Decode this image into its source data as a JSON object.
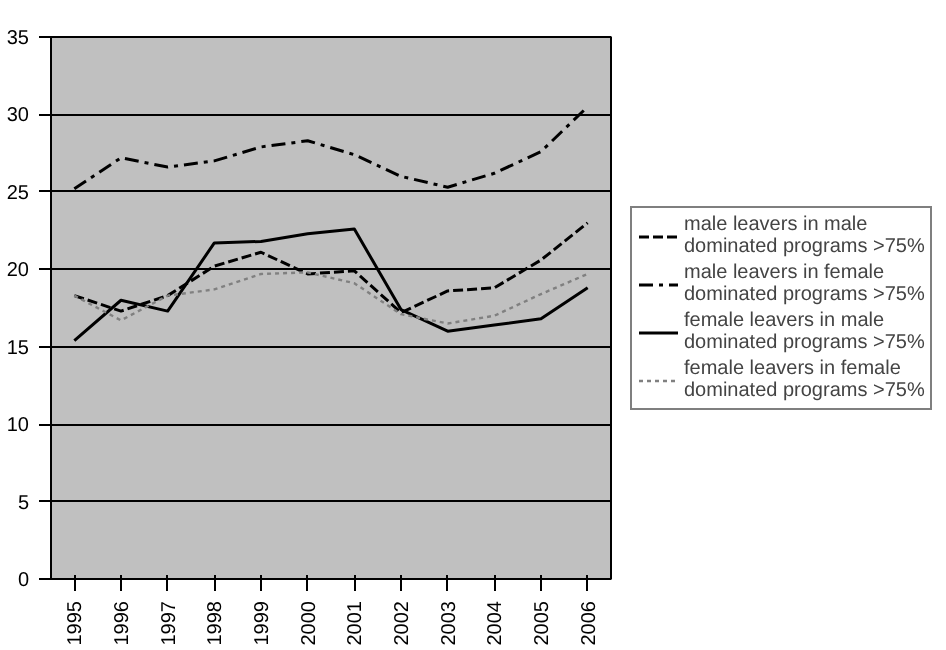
{
  "chart_data": {
    "type": "line",
    "categories": [
      "1995",
      "1996",
      "1997",
      "1998",
      "1999",
      "2000",
      "2001",
      "2002",
      "2003",
      "2004",
      "2005",
      "2006"
    ],
    "ylim": [
      0,
      35
    ],
    "yticks": [
      0,
      5,
      10,
      15,
      20,
      25,
      30,
      35
    ],
    "grid": "y",
    "legend": "right",
    "marker": "none",
    "series": [
      {
        "name": "male leavers in male dominated programs >75%",
        "color": "#000000",
        "line_style": "dashed",
        "values": [
          18.3,
          17.3,
          18.3,
          20.2,
          21.1,
          19.7,
          19.9,
          17.2,
          18.6,
          18.8,
          20.6,
          23.0
        ]
      },
      {
        "name": "male leavers in female dominated programs >75%",
        "color": "#000000",
        "line_style": "dashdot",
        "values": [
          25.2,
          27.2,
          26.6,
          27.0,
          27.9,
          28.3,
          27.4,
          26.0,
          25.3,
          26.2,
          27.6,
          30.5
        ]
      },
      {
        "name": "female leavers in male dominated programs >75%",
        "color": "#000000",
        "line_style": "solid",
        "values": [
          15.4,
          18.0,
          17.3,
          21.7,
          21.8,
          22.3,
          22.6,
          17.4,
          16.0,
          16.4,
          16.8,
          18.8
        ]
      },
      {
        "name": "female leavers in female dominated programs >75%",
        "color": "#808080",
        "line_style": "dotted",
        "values": [
          18.3,
          16.7,
          18.3,
          18.7,
          19.7,
          19.8,
          19.1,
          17.1,
          16.5,
          17.0,
          18.4,
          19.7
        ]
      }
    ]
  }
}
